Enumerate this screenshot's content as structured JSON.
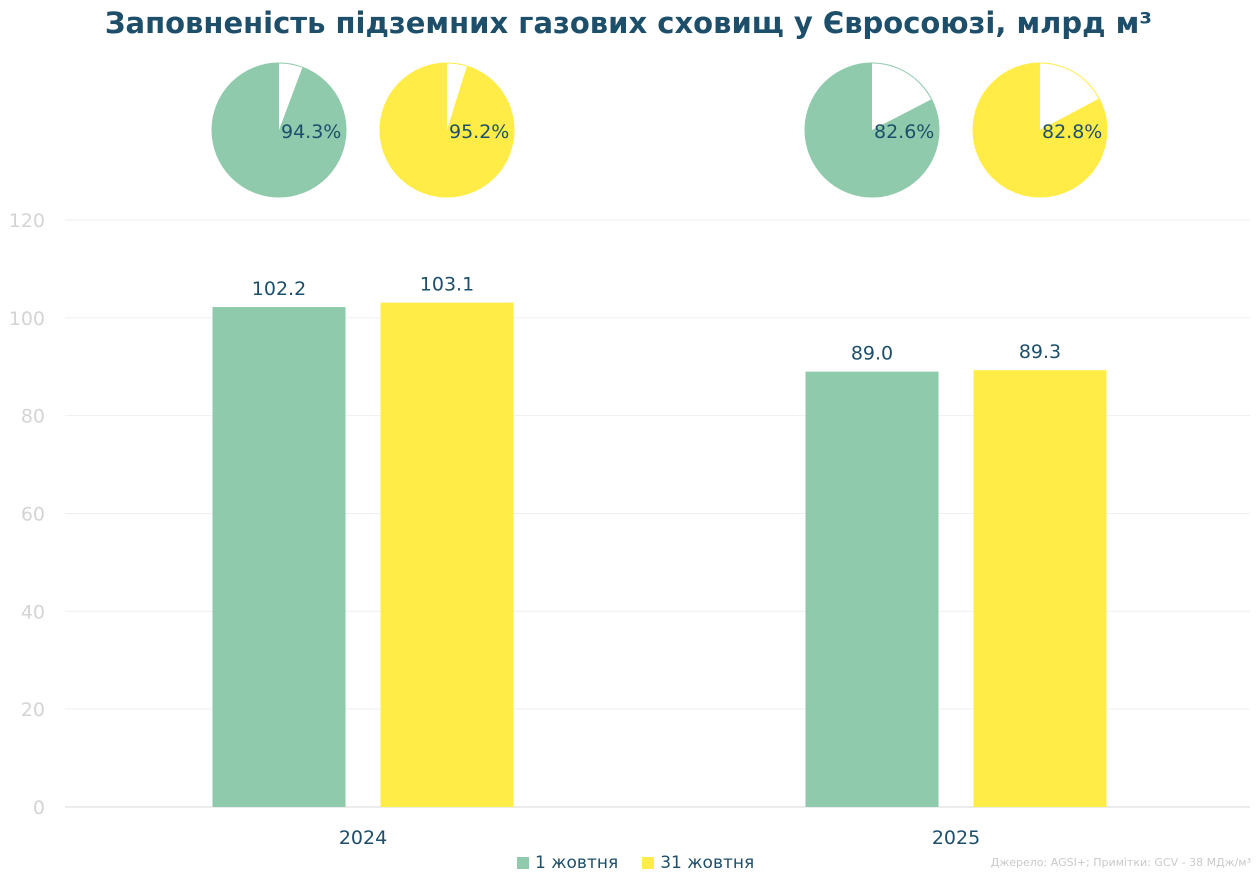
{
  "title": "Заповненість підземних газових сховищ у Євросоюзі, млрд м³",
  "source": "Джерело: AGSI+; Примітки: GCV - 38 МДж/м³",
  "colors": {
    "series1": "#8ecaab",
    "series2": "#ffec47",
    "text": "#1d4f6b",
    "axis": "#d9d9d9",
    "grid": "#efefef"
  },
  "chart_data": {
    "type": "bar",
    "title": "Заповненість підземних газових сховищ у Євросоюзі, млрд м³",
    "categories": [
      "2024",
      "2025"
    ],
    "series": [
      {
        "name": "1 жовтня",
        "values": [
          102.2,
          89.0
        ],
        "labels": [
          "102.2",
          "89.0"
        ],
        "fill_percent": [
          94.3,
          82.6
        ],
        "fill_labels": [
          "94.3%",
          "82.6%"
        ]
      },
      {
        "name": "31 жовтня",
        "values": [
          103.1,
          89.3
        ],
        "labels": [
          "103.1",
          "89.3"
        ],
        "fill_percent": [
          95.2,
          82.8
        ],
        "fill_labels": [
          "95.2%",
          "82.8%"
        ]
      }
    ],
    "ylim": [
      0,
      120
    ],
    "yticks": [
      "0",
      "20",
      "40",
      "60",
      "80",
      "100",
      "120"
    ],
    "grid": true,
    "legend_position": "bottom",
    "xlabel": "",
    "ylabel": ""
  }
}
